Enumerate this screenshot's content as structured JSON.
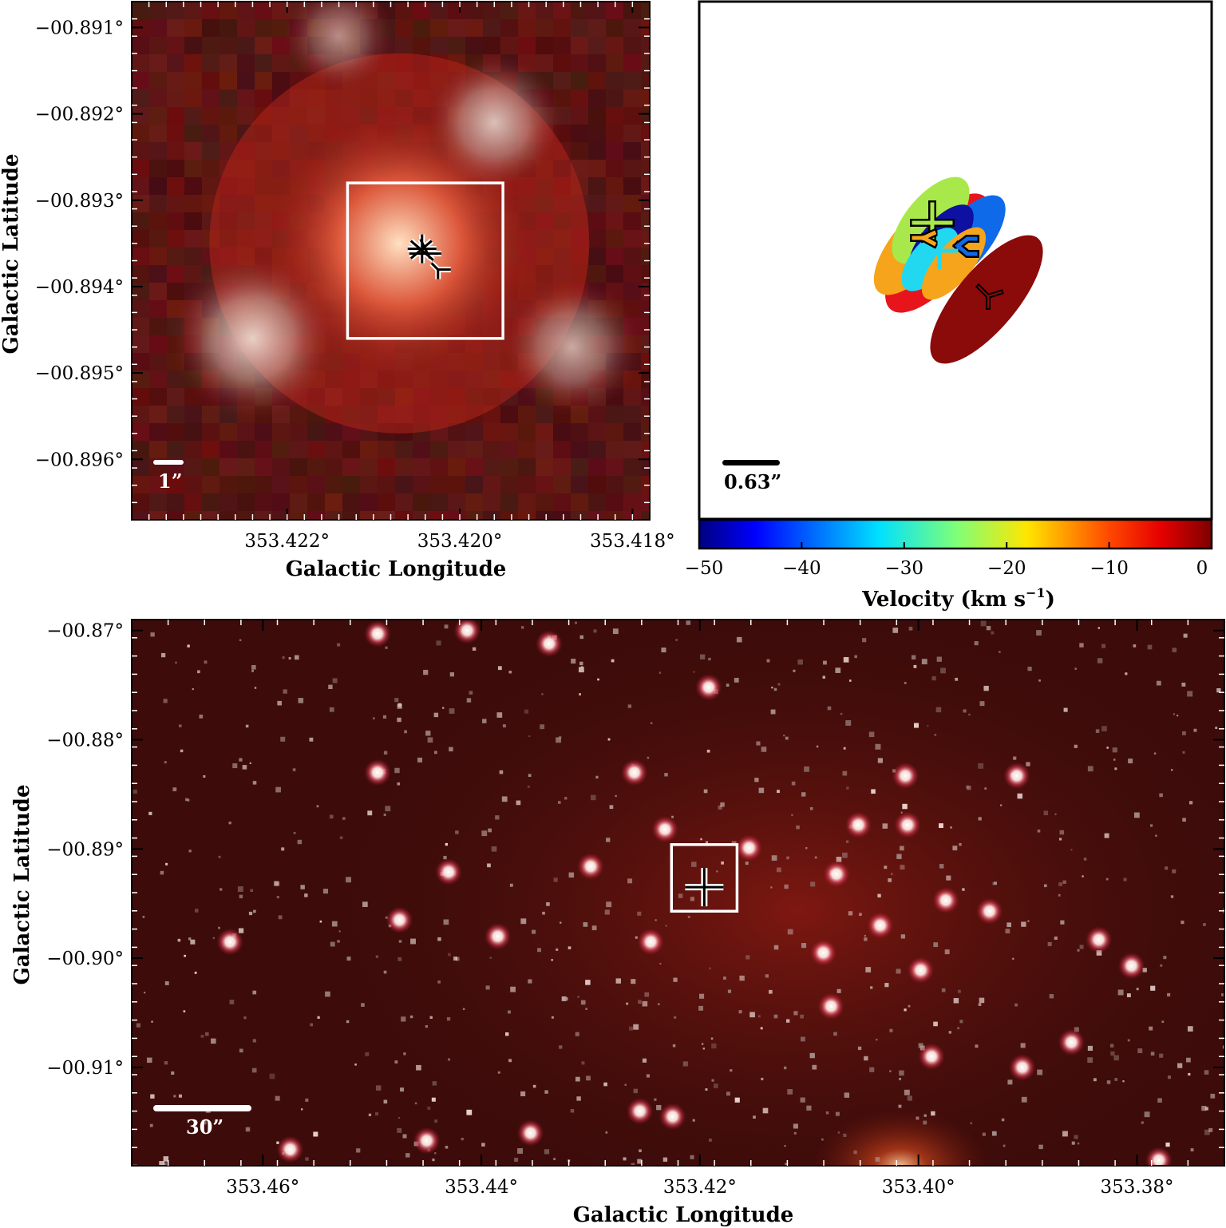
{
  "colors": {
    "image_background": "#5a0f0c",
    "frame": "#000000",
    "box": "#ffffff",
    "scalebar_dark": "#000000",
    "scalebar_light": "#ffffff"
  },
  "chart_data": [
    {
      "panel": "top-left",
      "type": "image",
      "xlabel": "Galactic Longitude",
      "ylabel": "Galactic Latitude",
      "xticks": [
        {
          "value": 353.422,
          "label": "353.422°"
        },
        {
          "value": 353.42,
          "label": "353.420°"
        },
        {
          "value": 353.418,
          "label": "353.418°"
        }
      ],
      "yticks": [
        {
          "value": -0.891,
          "label": "−00.891°"
        },
        {
          "value": -0.892,
          "label": "−00.892°"
        },
        {
          "value": -0.893,
          "label": "−00.893°"
        },
        {
          "value": -0.894,
          "label": "−00.894°"
        },
        {
          "value": -0.895,
          "label": "−00.895°"
        },
        {
          "value": -0.896,
          "label": "−00.896°"
        }
      ],
      "xlim": [
        353.4238,
        353.4178
      ],
      "ylim": [
        -0.8967,
        -0.8907
      ],
      "x_reversed": true,
      "scalebar": "1”",
      "box_lb": [
        [
          353.4213,
          -0.8946
        ],
        [
          353.4195,
          -0.8928
        ]
      ],
      "source_marker": [
        353.4204,
        -0.8936
      ],
      "bright_blobs": [
        {
          "l": 353.4207,
          "b": -0.8935,
          "radius_deg": 0.001,
          "color": "#ffe1c2"
        },
        {
          "l": 353.4224,
          "b": -0.8946,
          "radius_deg": 0.0006,
          "color": "#e8cfc4"
        },
        {
          "l": 353.4196,
          "b": -0.8921,
          "radius_deg": 0.0005,
          "color": "#d9c0b8"
        },
        {
          "l": 353.4187,
          "b": -0.8947,
          "radius_deg": 0.0005,
          "color": "#c9aaa2"
        },
        {
          "l": 353.4214,
          "b": -0.8911,
          "radius_deg": 0.0004,
          "color": "#b98d86"
        }
      ]
    },
    {
      "panel": "top-right",
      "type": "scatter",
      "scalebar": "0.63”",
      "colorbar": {
        "label": "Velocity (km s",
        "label_exponent": "−1",
        "label_close": ")",
        "vmin": -50,
        "vmax": 0,
        "ticks": [
          {
            "value": -50,
            "label": "−50"
          },
          {
            "value": -40,
            "label": "−40"
          },
          {
            "value": -30,
            "label": "−30"
          },
          {
            "value": -20,
            "label": "−20"
          },
          {
            "value": -10,
            "label": "−10"
          },
          {
            "value": 0,
            "label": "0"
          }
        ]
      },
      "ellipses": [
        {
          "velocity": -10,
          "color": "#e8141c"
        },
        {
          "velocity": -47,
          "color": "#0f6aea"
        },
        {
          "velocity": -15,
          "color": "#f5a41b"
        },
        {
          "velocity": -24,
          "color": "#a9e84a"
        },
        {
          "velocity": -51,
          "color": "#0d10a0"
        },
        {
          "velocity": -32,
          "color": "#22d8f0"
        },
        {
          "velocity": 0,
          "color": "#8b0a0a"
        }
      ]
    },
    {
      "panel": "bottom",
      "type": "image",
      "xlabel": "Galactic Longitude",
      "ylabel": "Galactic Latitude",
      "xticks": [
        {
          "value": 353.46,
          "label": "353.46°"
        },
        {
          "value": 353.44,
          "label": "353.44°"
        },
        {
          "value": 353.42,
          "label": "353.42°"
        },
        {
          "value": 353.4,
          "label": "353.40°"
        },
        {
          "value": 353.38,
          "label": "353.38°"
        }
      ],
      "yticks": [
        {
          "value": -0.87,
          "label": "−00.87°"
        },
        {
          "value": -0.88,
          "label": "−00.88°"
        },
        {
          "value": -0.89,
          "label": "−00.89°"
        },
        {
          "value": -0.9,
          "label": "−00.90°"
        },
        {
          "value": -0.91,
          "label": "−00.91°"
        }
      ],
      "xlim": [
        353.472,
        353.372
      ],
      "ylim": [
        -0.919,
        -0.869
      ],
      "x_reversed": true,
      "scalebar": "30”",
      "box_lb": [
        [
          353.4226,
          -0.8957
        ],
        [
          353.4166,
          -0.8896
        ]
      ],
      "source_marker": [
        353.4196,
        -0.8935
      ],
      "bright_stars": [
        [
          353.4495,
          -0.8703
        ],
        [
          353.4413,
          -0.87
        ],
        [
          353.4338,
          -0.8712
        ],
        [
          353.4192,
          -0.8752
        ],
        [
          353.4495,
          -0.883
        ],
        [
          353.426,
          -0.883
        ],
        [
          353.4012,
          -0.8833
        ],
        [
          353.391,
          -0.8833
        ],
        [
          353.4055,
          -0.8878
        ],
        [
          353.401,
          -0.8878
        ],
        [
          353.4232,
          -0.8882
        ],
        [
          353.4155,
          -0.8899
        ],
        [
          353.4075,
          -0.8923
        ],
        [
          353.43,
          -0.8916
        ],
        [
          353.443,
          -0.8921
        ],
        [
          353.4475,
          -0.8965
        ],
        [
          353.4385,
          -0.898
        ],
        [
          353.463,
          -0.8985
        ],
        [
          353.4245,
          -0.8985
        ],
        [
          353.4087,
          -0.8995
        ],
        [
          353.4035,
          -0.897
        ],
        [
          353.3975,
          -0.8947
        ],
        [
          353.3935,
          -0.8957
        ],
        [
          353.3835,
          -0.8983
        ],
        [
          353.3805,
          -0.9007
        ],
        [
          353.3998,
          -0.9011
        ],
        [
          353.408,
          -0.9044
        ],
        [
          353.3988,
          -0.909
        ],
        [
          353.3905,
          -0.91
        ],
        [
          353.386,
          -0.9077
        ],
        [
          353.4255,
          -0.914
        ],
        [
          353.445,
          -0.9167
        ],
        [
          353.4355,
          -0.916
        ],
        [
          353.4575,
          -0.9175
        ],
        [
          353.4225,
          -0.9145
        ],
        [
          353.378,
          -0.9185
        ]
      ]
    }
  ]
}
